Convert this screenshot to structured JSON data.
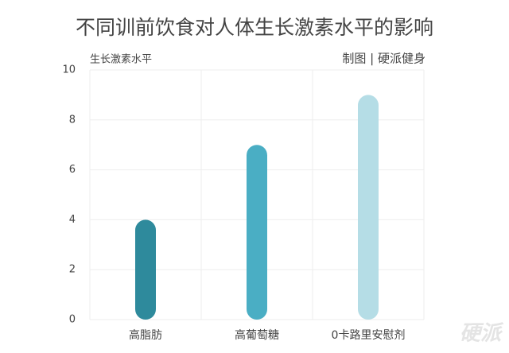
{
  "chart_data": {
    "type": "bar",
    "title": "不同训前饮食对人体生长激素水平的影响",
    "y_label": "生长激素水平",
    "annotation": "制图 | 硬派健身",
    "watermark": "硬派",
    "categories": [
      "高脂肪",
      "高葡萄糖",
      "0卡路里安慰剂"
    ],
    "values": [
      4,
      7,
      9
    ],
    "colors": [
      "#2e8a9c",
      "#4aaec4",
      "#b5dde6"
    ],
    "ylim": [
      0,
      10
    ],
    "yticks": [
      0,
      2,
      4,
      6,
      8,
      10
    ],
    "grid": true
  }
}
